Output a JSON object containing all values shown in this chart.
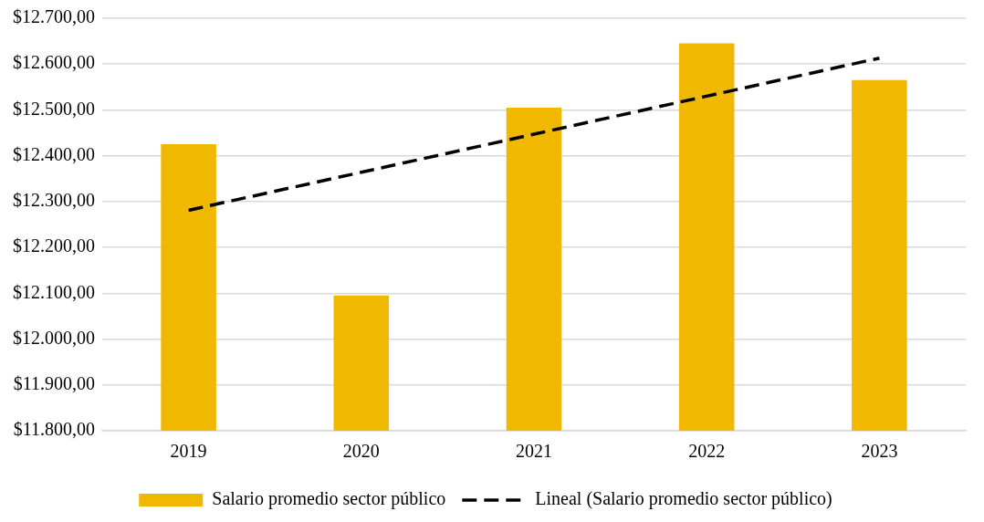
{
  "chart_data": {
    "type": "bar",
    "categories": [
      "2019",
      "2020",
      "2021",
      "2022",
      "2023"
    ],
    "series": [
      {
        "name": "Salario promedio sector público",
        "color": "#f0b800",
        "values": [
          12425,
          12095,
          12505,
          12645,
          12565
        ]
      },
      {
        "name": "Lineal (Salario promedio sector público)",
        "type": "line",
        "color": "#000000",
        "line_style": "dashed",
        "marker": "none",
        "values": [
          12281,
          12364,
          12447,
          12530,
          12613
        ]
      }
    ],
    "ylim": [
      11800,
      12700
    ],
    "yticks": [
      {
        "value": 11800,
        "label": "$11.800,00"
      },
      {
        "value": 11900,
        "label": "$11.900,00"
      },
      {
        "value": 12000,
        "label": "$12.000,00"
      },
      {
        "value": 12100,
        "label": "$12.100,00"
      },
      {
        "value": 12200,
        "label": "$12.200,00"
      },
      {
        "value": 12300,
        "label": "$12.300,00"
      },
      {
        "value": 12400,
        "label": "$12.400,00"
      },
      {
        "value": 12500,
        "label": "$12.500,00"
      },
      {
        "value": 12600,
        "label": "$12.600,00"
      },
      {
        "value": 12700,
        "label": "$12.700,00"
      }
    ],
    "grid": "y",
    "legend": "bottom"
  }
}
